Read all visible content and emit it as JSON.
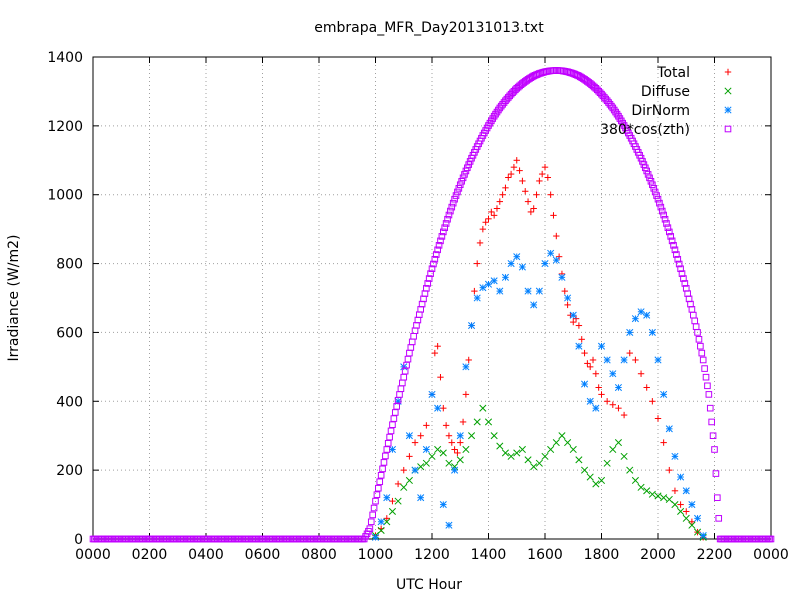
{
  "chart_data": {
    "type": "scatter",
    "title": "embrapa_MFR_Day20131013.txt",
    "xlabel": "UTC Hour",
    "ylabel": "Irradiance (W/m2)",
    "xlim": [
      0,
      24
    ],
    "ylim": [
      0,
      1400
    ],
    "x_ticks": [
      0,
      2,
      4,
      6,
      8,
      10,
      12,
      14,
      16,
      18,
      20,
      22,
      24
    ],
    "x_tick_labels": [
      "0000",
      "0200",
      "0400",
      "0600",
      "0800",
      "1000",
      "1200",
      "1400",
      "1600",
      "1800",
      "2000",
      "2200",
      "0000"
    ],
    "y_ticks": [
      0,
      200,
      400,
      600,
      800,
      1000,
      1200,
      1400
    ],
    "y_tick_labels": [
      "0",
      "200",
      "400",
      "600",
      "800",
      "1000",
      "1200",
      "1400"
    ],
    "grid": true,
    "legend_position": "top-right",
    "series": [
      {
        "name": "Total",
        "marker": "plus",
        "color": "#ff0000",
        "points": [
          [
            10.0,
            10
          ],
          [
            10.2,
            30
          ],
          [
            10.4,
            60
          ],
          [
            10.6,
            110
          ],
          [
            10.8,
            160
          ],
          [
            11.0,
            200
          ],
          [
            11.2,
            240
          ],
          [
            11.4,
            280
          ],
          [
            11.6,
            300
          ],
          [
            11.8,
            330
          ],
          [
            12.0,
            420
          ],
          [
            12.1,
            540
          ],
          [
            12.2,
            560
          ],
          [
            12.3,
            470
          ],
          [
            12.4,
            380
          ],
          [
            12.5,
            330
          ],
          [
            12.6,
            300
          ],
          [
            12.7,
            280
          ],
          [
            12.8,
            260
          ],
          [
            12.9,
            250
          ],
          [
            13.0,
            280
          ],
          [
            13.1,
            340
          ],
          [
            13.2,
            420
          ],
          [
            13.3,
            520
          ],
          [
            13.4,
            620
          ],
          [
            13.5,
            720
          ],
          [
            13.6,
            800
          ],
          [
            13.7,
            860
          ],
          [
            13.8,
            900
          ],
          [
            13.9,
            920
          ],
          [
            14.0,
            930
          ],
          [
            14.1,
            950
          ],
          [
            14.2,
            940
          ],
          [
            14.3,
            960
          ],
          [
            14.4,
            980
          ],
          [
            14.5,
            1000
          ],
          [
            14.6,
            1020
          ],
          [
            14.7,
            1050
          ],
          [
            14.8,
            1060
          ],
          [
            14.9,
            1080
          ],
          [
            15.0,
            1100
          ],
          [
            15.1,
            1070
          ],
          [
            15.2,
            1040
          ],
          [
            15.3,
            1010
          ],
          [
            15.4,
            980
          ],
          [
            15.5,
            950
          ],
          [
            15.6,
            960
          ],
          [
            15.7,
            1000
          ],
          [
            15.8,
            1040
          ],
          [
            15.9,
            1060
          ],
          [
            16.0,
            1080
          ],
          [
            16.1,
            1050
          ],
          [
            16.2,
            1000
          ],
          [
            16.3,
            940
          ],
          [
            16.4,
            880
          ],
          [
            16.5,
            820
          ],
          [
            16.6,
            770
          ],
          [
            16.7,
            720
          ],
          [
            16.8,
            680
          ],
          [
            16.9,
            650
          ],
          [
            17.0,
            630
          ],
          [
            17.1,
            640
          ],
          [
            17.2,
            620
          ],
          [
            17.3,
            580
          ],
          [
            17.4,
            540
          ],
          [
            17.5,
            510
          ],
          [
            17.6,
            500
          ],
          [
            17.7,
            520
          ],
          [
            17.8,
            480
          ],
          [
            17.9,
            440
          ],
          [
            18.0,
            420
          ],
          [
            18.2,
            400
          ],
          [
            18.4,
            390
          ],
          [
            18.6,
            380
          ],
          [
            18.8,
            360
          ],
          [
            19.0,
            540
          ],
          [
            19.2,
            520
          ],
          [
            19.4,
            480
          ],
          [
            19.6,
            440
          ],
          [
            19.8,
            400
          ],
          [
            20.0,
            350
          ],
          [
            20.2,
            280
          ],
          [
            20.4,
            200
          ],
          [
            20.6,
            140
          ],
          [
            20.8,
            100
          ],
          [
            21.0,
            80
          ],
          [
            21.2,
            50
          ],
          [
            21.4,
            20
          ],
          [
            21.6,
            5
          ]
        ]
      },
      {
        "name": "Diffuse",
        "marker": "cross",
        "color": "#00a000",
        "points": [
          [
            10.0,
            10
          ],
          [
            10.2,
            25
          ],
          [
            10.4,
            50
          ],
          [
            10.6,
            80
          ],
          [
            10.8,
            110
          ],
          [
            11.0,
            150
          ],
          [
            11.2,
            170
          ],
          [
            11.4,
            200
          ],
          [
            11.6,
            210
          ],
          [
            11.8,
            220
          ],
          [
            12.0,
            240
          ],
          [
            12.2,
            260
          ],
          [
            12.4,
            250
          ],
          [
            12.6,
            220
          ],
          [
            12.8,
            210
          ],
          [
            13.0,
            230
          ],
          [
            13.2,
            260
          ],
          [
            13.4,
            300
          ],
          [
            13.6,
            340
          ],
          [
            13.8,
            380
          ],
          [
            14.0,
            340
          ],
          [
            14.2,
            300
          ],
          [
            14.4,
            270
          ],
          [
            14.6,
            250
          ],
          [
            14.8,
            240
          ],
          [
            15.0,
            250
          ],
          [
            15.2,
            260
          ],
          [
            15.4,
            230
          ],
          [
            15.6,
            210
          ],
          [
            15.8,
            220
          ],
          [
            16.0,
            240
          ],
          [
            16.2,
            260
          ],
          [
            16.4,
            280
          ],
          [
            16.6,
            300
          ],
          [
            16.8,
            280
          ],
          [
            17.0,
            260
          ],
          [
            17.2,
            230
          ],
          [
            17.4,
            200
          ],
          [
            17.6,
            180
          ],
          [
            17.8,
            160
          ],
          [
            18.0,
            170
          ],
          [
            18.2,
            220
          ],
          [
            18.4,
            260
          ],
          [
            18.6,
            280
          ],
          [
            18.8,
            240
          ],
          [
            19.0,
            200
          ],
          [
            19.2,
            170
          ],
          [
            19.4,
            150
          ],
          [
            19.6,
            140
          ],
          [
            19.8,
            130
          ],
          [
            20.0,
            125
          ],
          [
            20.2,
            120
          ],
          [
            20.4,
            115
          ],
          [
            20.6,
            100
          ],
          [
            20.8,
            80
          ],
          [
            21.0,
            60
          ],
          [
            21.2,
            40
          ],
          [
            21.4,
            20
          ],
          [
            21.6,
            5
          ]
        ]
      },
      {
        "name": "DirNorm",
        "marker": "star",
        "color": "#0080ff",
        "points": [
          [
            10.0,
            5
          ],
          [
            10.2,
            50
          ],
          [
            10.4,
            120
          ],
          [
            10.6,
            260
          ],
          [
            10.8,
            400
          ],
          [
            11.0,
            500
          ],
          [
            11.2,
            300
          ],
          [
            11.4,
            200
          ],
          [
            11.6,
            120
          ],
          [
            11.8,
            260
          ],
          [
            12.0,
            420
          ],
          [
            12.2,
            380
          ],
          [
            12.4,
            100
          ],
          [
            12.6,
            40
          ],
          [
            12.8,
            200
          ],
          [
            13.0,
            300
          ],
          [
            13.2,
            500
          ],
          [
            13.4,
            620
          ],
          [
            13.6,
            700
          ],
          [
            13.8,
            730
          ],
          [
            14.0,
            740
          ],
          [
            14.2,
            750
          ],
          [
            14.4,
            720
          ],
          [
            14.6,
            760
          ],
          [
            14.8,
            800
          ],
          [
            15.0,
            820
          ],
          [
            15.2,
            790
          ],
          [
            15.4,
            720
          ],
          [
            15.6,
            680
          ],
          [
            15.8,
            720
          ],
          [
            16.0,
            800
          ],
          [
            16.2,
            830
          ],
          [
            16.4,
            810
          ],
          [
            16.6,
            760
          ],
          [
            16.8,
            700
          ],
          [
            17.0,
            650
          ],
          [
            17.2,
            560
          ],
          [
            17.4,
            450
          ],
          [
            17.6,
            400
          ],
          [
            17.8,
            380
          ],
          [
            18.0,
            560
          ],
          [
            18.2,
            520
          ],
          [
            18.4,
            480
          ],
          [
            18.6,
            440
          ],
          [
            18.8,
            520
          ],
          [
            19.0,
            600
          ],
          [
            19.2,
            640
          ],
          [
            19.4,
            660
          ],
          [
            19.6,
            650
          ],
          [
            19.8,
            600
          ],
          [
            20.0,
            520
          ],
          [
            20.2,
            420
          ],
          [
            20.4,
            320
          ],
          [
            20.6,
            240
          ],
          [
            20.8,
            180
          ],
          [
            21.0,
            140
          ],
          [
            21.2,
            100
          ],
          [
            21.4,
            60
          ],
          [
            21.6,
            10
          ]
        ]
      },
      {
        "name": "380*cos(zth)",
        "marker": "open-square",
        "color": "#c000ff",
        "points": [
          [
            0.0,
            0
          ],
          [
            1.0,
            0
          ],
          [
            2.0,
            0
          ],
          [
            3.0,
            0
          ],
          [
            4.0,
            0
          ],
          [
            5.0,
            0
          ],
          [
            6.0,
            0
          ],
          [
            7.0,
            0
          ],
          [
            8.0,
            0
          ],
          [
            9.0,
            0
          ],
          [
            9.6,
            0
          ],
          [
            9.8,
            30
          ],
          [
            10.0,
            110
          ],
          [
            10.2,
            185
          ],
          [
            10.4,
            260
          ],
          [
            10.6,
            332
          ],
          [
            10.8,
            403
          ],
          [
            11.0,
            470
          ],
          [
            11.2,
            540
          ],
          [
            11.4,
            605
          ],
          [
            11.6,
            667
          ],
          [
            11.8,
            728
          ],
          [
            12.0,
            785
          ],
          [
            12.2,
            840
          ],
          [
            12.4,
            892
          ],
          [
            12.6,
            941
          ],
          [
            12.8,
            987
          ],
          [
            13.0,
            1029
          ],
          [
            13.2,
            1069
          ],
          [
            13.4,
            1106
          ],
          [
            13.6,
            1140
          ],
          [
            13.8,
            1172
          ],
          [
            14.0,
            1201
          ],
          [
            14.2,
            1228
          ],
          [
            14.4,
            1252
          ],
          [
            14.6,
            1273
          ],
          [
            14.8,
            1292
          ],
          [
            15.0,
            1309
          ],
          [
            15.2,
            1323
          ],
          [
            15.4,
            1335
          ],
          [
            15.6,
            1345
          ],
          [
            15.8,
            1352
          ],
          [
            16.0,
            1357
          ],
          [
            16.2,
            1360
          ],
          [
            16.4,
            1361
          ],
          [
            16.6,
            1360
          ],
          [
            16.8,
            1357
          ],
          [
            17.0,
            1352
          ],
          [
            17.2,
            1345
          ],
          [
            17.4,
            1335
          ],
          [
            17.6,
            1323
          ],
          [
            17.8,
            1309
          ],
          [
            18.0,
            1292
          ],
          [
            18.2,
            1273
          ],
          [
            18.4,
            1252
          ],
          [
            18.6,
            1228
          ],
          [
            18.8,
            1201
          ],
          [
            19.0,
            1172
          ],
          [
            19.2,
            1140
          ],
          [
            19.4,
            1106
          ],
          [
            19.6,
            1069
          ],
          [
            19.8,
            1029
          ],
          [
            20.0,
            987
          ],
          [
            20.2,
            941
          ],
          [
            20.4,
            892
          ],
          [
            20.6,
            840
          ],
          [
            20.8,
            785
          ],
          [
            21.0,
            728
          ],
          [
            21.2,
            667
          ],
          [
            21.4,
            600
          ],
          [
            21.6,
            520
          ],
          [
            21.8,
            420
          ],
          [
            22.0,
            260
          ],
          [
            22.1,
            120
          ],
          [
            22.2,
            0
          ],
          [
            22.6,
            0
          ],
          [
            23.0,
            0
          ],
          [
            23.5,
            0
          ],
          [
            24.0,
            0
          ]
        ]
      }
    ]
  }
}
